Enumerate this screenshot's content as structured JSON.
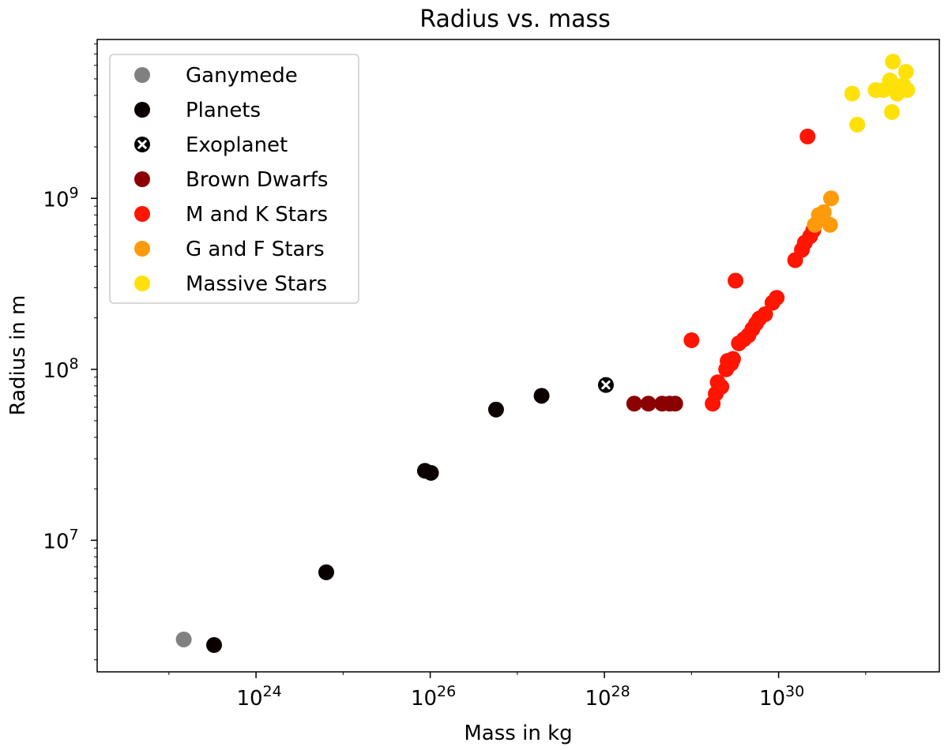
{
  "chart_data": {
    "type": "scatter",
    "title": "Radius vs. mass",
    "xlabel": "Mass in kg",
    "ylabel": "Radius in m",
    "xscale": "log",
    "yscale": "log",
    "xlim": [
      1.5e+22,
      7e+31
    ],
    "ylim": [
      1700000.0,
      8500000000.0
    ],
    "xticks": [
      {
        "value": 1e+24,
        "base": "10",
        "exp": "24"
      },
      {
        "value": 1e+26,
        "base": "10",
        "exp": "26"
      },
      {
        "value": 1e+28,
        "base": "10",
        "exp": "28"
      },
      {
        "value": 1e+30,
        "base": "10",
        "exp": "30"
      }
    ],
    "yticks": [
      {
        "value": 10000000.0,
        "base": "10",
        "exp": "7"
      },
      {
        "value": 100000000.0,
        "base": "10",
        "exp": "8"
      },
      {
        "value": 1000000000.0,
        "base": "10",
        "exp": "9"
      }
    ],
    "legend_position": "upper-left",
    "series": [
      {
        "name": "Ganymede",
        "color": "#808080",
        "marker": "circle",
        "points": [
          [
            1.48e+23,
            2630000.0
          ]
        ]
      },
      {
        "name": "Planets",
        "color": "#0a0000",
        "marker": "circle",
        "points": [
          [
            3.3e+23,
            2440000.0
          ],
          [
            6.4e+24,
            6500000.0
          ],
          [
            8.7e+25,
            25500000.0
          ],
          [
            1.02e+26,
            24800000.0
          ],
          [
            5.7e+26,
            58200000.0
          ],
          [
            1.9e+27,
            70000000.0
          ]
        ]
      },
      {
        "name": "Exoplanet",
        "color": "#000000",
        "marker": "x-circle",
        "points": [
          [
            1.04e+28,
            81000000.0
          ]
        ]
      },
      {
        "name": "Brown Dwarfs",
        "color": "#8b0000",
        "marker": "circle",
        "points": [
          [
            2.2e+28,
            63000000.0
          ],
          [
            3.2e+28,
            63000000.0
          ],
          [
            4.6e+28,
            63000000.0
          ],
          [
            5.6e+28,
            63000000.0
          ],
          [
            6.5e+28,
            63000000.0
          ]
        ]
      },
      {
        "name": "M and K Stars",
        "color": "#ff1500",
        "marker": "circle",
        "points": [
          [
            1e+29,
            148000000.0
          ],
          [
            1.75e+29,
            63000000.0
          ],
          [
            1.9e+29,
            72000000.0
          ],
          [
            2e+29,
            84000000.0
          ],
          [
            2.2e+29,
            79000000.0
          ],
          [
            2.5e+29,
            100000000.0
          ],
          [
            2.6e+29,
            112000000.0
          ],
          [
            2.85e+29,
            108000000.0
          ],
          [
            3e+29,
            115000000.0
          ],
          [
            3.2e+29,
            330000000.0
          ],
          [
            3.5e+29,
            142000000.0
          ],
          [
            4e+29,
            150000000.0
          ],
          [
            4.5e+29,
            158000000.0
          ],
          [
            5e+29,
            172000000.0
          ],
          [
            5.5e+29,
            185000000.0
          ],
          [
            6e+29,
            198000000.0
          ],
          [
            7e+29,
            210000000.0
          ],
          [
            8.5e+29,
            245000000.0
          ],
          [
            9.5e+29,
            262000000.0
          ],
          [
            1.55e+30,
            435000000.0
          ],
          [
            1.85e+30,
            500000000.0
          ],
          [
            2e+30,
            550000000.0
          ],
          [
            2.3e+30,
            600000000.0
          ],
          [
            2.5e+30,
            650000000.0
          ],
          [
            2.15e+30,
            2300000000.0
          ]
        ]
      },
      {
        "name": "G and F Stars",
        "color": "#ff9a0a",
        "marker": "circle",
        "points": [
          [
            2.6e+30,
            700000000.0
          ],
          [
            2.9e+30,
            800000000.0
          ],
          [
            3.3e+30,
            830000000.0
          ],
          [
            3.9e+30,
            700000000.0
          ],
          [
            4e+30,
            1000000000.0
          ]
        ]
      },
      {
        "name": "Massive Stars",
        "color": "#ffe10a",
        "marker": "circle",
        "points": [
          [
            7e+30,
            4100000000.0
          ],
          [
            8e+30,
            2700000000.0
          ],
          [
            1.3e+31,
            4300000000.0
          ],
          [
            1.6e+31,
            4300000000.0
          ],
          [
            1.9e+31,
            4900000000.0
          ],
          [
            2e+31,
            3200000000.0
          ],
          [
            2.05e+31,
            6300000000.0
          ],
          [
            2.3e+31,
            4100000000.0
          ],
          [
            2.7e+31,
            4600000000.0
          ],
          [
            2.9e+31,
            5500000000.0
          ],
          [
            3e+31,
            4300000000.0
          ]
        ]
      }
    ]
  }
}
